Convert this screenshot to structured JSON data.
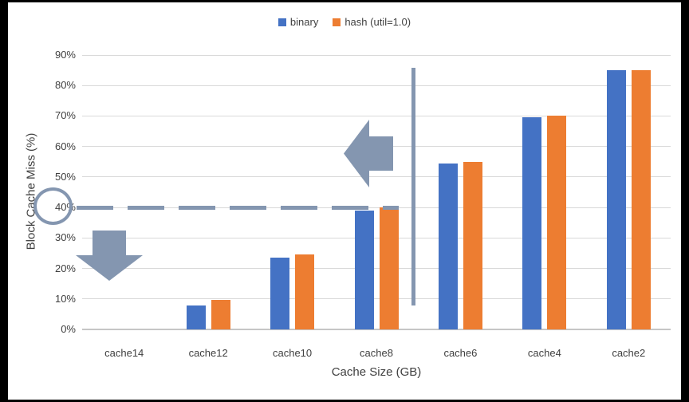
{
  "legend": {
    "items": [
      {
        "label": "binary",
        "color": "#4472C4"
      },
      {
        "label": "hash (util=1.0)",
        "color": "#ED7D31"
      }
    ]
  },
  "chart_data": {
    "type": "bar",
    "title": "",
    "xlabel": "Cache Size (GB)",
    "ylabel": "Block Cache Miss (%)",
    "categories": [
      "cache14",
      "cache12",
      "cache10",
      "cache8",
      "cache6",
      "cache4",
      "cache2"
    ],
    "series": [
      {
        "name": "binary",
        "color": "#4472C4",
        "values": [
          0,
          7.8,
          23.5,
          39,
          54.5,
          69.5,
          85
        ]
      },
      {
        "name": "hash (util=1.0)",
        "color": "#ED7D31",
        "values": [
          0,
          9.7,
          24.7,
          40,
          55,
          70,
          85
        ]
      }
    ],
    "ylim": [
      0,
      90
    ],
    "ytick_step": 10,
    "ytick_suffix": "%",
    "grid": "horizontal",
    "gridline_color": "#D9D9D9",
    "legend_position": "top-center",
    "text_color": "#404040",
    "annotations": {
      "dashed_threshold_line": {
        "y_value": 40,
        "color": "#8496B0",
        "style": "dashed",
        "extent": "from y-axis to vertical divider"
      },
      "circle_highlight": {
        "target": "40% y-axis tick label",
        "color": "#8496B0"
      },
      "vertical_divider_line": {
        "between": [
          "cache8",
          "cache6"
        ],
        "color": "#8496B0"
      },
      "left_block_arrow": {
        "points": "left",
        "color": "#8496B0"
      },
      "down_block_arrow": {
        "points": "down",
        "color": "#8496B0"
      }
    }
  }
}
